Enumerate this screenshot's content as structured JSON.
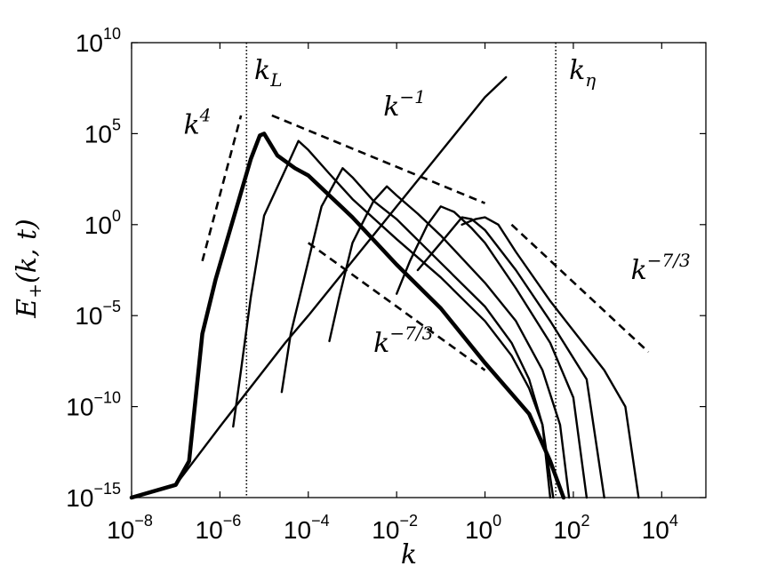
{
  "chart_data": {
    "type": "line",
    "xscale": "log",
    "yscale": "log",
    "xlim": [
      1e-08,
      100000.0
    ],
    "ylim": [
      1e-15,
      10000000000.0
    ],
    "xlabel": "k",
    "ylabel": "E+(k,t)",
    "grid": false,
    "x_ticks": [
      {
        "base": "10",
        "exp": "−8",
        "value": 1e-08
      },
      {
        "base": "10",
        "exp": "−6",
        "value": 1e-06
      },
      {
        "base": "10",
        "exp": "−4",
        "value": 0.0001
      },
      {
        "base": "10",
        "exp": "−2",
        "value": 0.01
      },
      {
        "base": "10",
        "exp": "0",
        "value": 1
      },
      {
        "base": "10",
        "exp": "2",
        "value": 100.0
      },
      {
        "base": "10",
        "exp": "4",
        "value": 10000.0
      }
    ],
    "y_ticks": [
      {
        "base": "10",
        "exp": "−15",
        "value": 1e-15
      },
      {
        "base": "10",
        "exp": "−10",
        "value": 1e-10
      },
      {
        "base": "10",
        "exp": "−5",
        "value": 1e-05
      },
      {
        "base": "10",
        "exp": "0",
        "value": 1
      },
      {
        "base": "10",
        "exp": "5",
        "value": 100000.0
      },
      {
        "base": "10",
        "exp": "10",
        "value": 10000000000.0
      }
    ],
    "vlines": [
      {
        "label": "k_L",
        "x": 4e-06
      },
      {
        "label": "k_η",
        "x": 40
      }
    ],
    "reference_slopes": [
      {
        "label": "k^4",
        "points": [
          [
            4e-07,
            0.01
          ],
          [
            3e-06,
            1000000.0
          ]
        ]
      },
      {
        "label": "k^-1",
        "points": [
          [
            1.5e-05,
            1000000.0
          ],
          [
            1,
            15.0
          ]
        ]
      },
      {
        "label": "k^-7/3",
        "points": [
          [
            0.0001,
            0.1
          ],
          [
            1,
            -8
          ]
        ]
      },
      {
        "label": "k^-7/3",
        "points": [
          [
            4,
            1.0
          ],
          [
            5000.0,
            -7
          ]
        ]
      }
    ],
    "annotations": [
      {
        "text": "k^4",
        "x": 1.5e-07,
        "y": 100000.0
      },
      {
        "text": "k^−1",
        "x": 0.005,
        "y": 1000000.0
      },
      {
        "text": "k^−7/3",
        "x": 0.003,
        "y": 1e-07
      },
      {
        "text": "k^−7/3",
        "x": 2000.0,
        "y": 0.001
      },
      {
        "text": "k_L",
        "x": 6e-06,
        "y": 100000000.0
      },
      {
        "text": "k_η",
        "x": 80,
        "y": 100000000.0
      }
    ],
    "series": [
      {
        "bold": false,
        "points": [
          [
            1e-08,
            -15
          ],
          [
            1e-07,
            -14.3
          ],
          [
            1e-06,
            -11.1
          ],
          [
            3e-05,
            -6.5
          ],
          [
            0.0001,
            -5
          ],
          [
            0.001,
            -2
          ],
          [
            0.01,
            1
          ],
          [
            0.1,
            4
          ],
          [
            1.0,
            7
          ],
          [
            3.0,
            8.1
          ]
        ],
        "log_y": true,
        "note": "envelope"
      },
      {
        "bold": false,
        "points": [
          [
            2e-06,
            -11.1
          ],
          [
            3e-06,
            -8
          ],
          [
            5e-06,
            -4
          ],
          [
            1e-05,
            0.5
          ],
          [
            3e-05,
            3
          ],
          [
            6e-05,
            4.6
          ],
          [
            0.0001,
            4.1
          ],
          [
            0.0003,
            2.8
          ],
          [
            0.001,
            1.4
          ],
          [
            0.01,
            -0.8
          ],
          [
            0.1,
            -2.9
          ],
          [
            1,
            -5.3
          ],
          [
            4,
            -7.2
          ],
          [
            10,
            -9
          ],
          [
            20,
            -11
          ],
          [
            30,
            -15
          ]
        ],
        "log_y": true
      },
      {
        "bold": false,
        "points": [
          [
            2.5e-05,
            -9.2
          ],
          [
            4e-05,
            -6
          ],
          [
            0.0001,
            -2
          ],
          [
            0.0002,
            1
          ],
          [
            0.0006,
            3.1
          ],
          [
            0.001,
            2.6
          ],
          [
            0.003,
            1.3
          ],
          [
            0.01,
            0.3
          ],
          [
            0.1,
            -2.1
          ],
          [
            1,
            -4.5
          ],
          [
            4,
            -6.5
          ],
          [
            10,
            -8.5
          ],
          [
            20,
            -11
          ],
          [
            35,
            -15
          ]
        ],
        "log_y": true
      },
      {
        "bold": false,
        "points": [
          [
            0.0003,
            -6.4
          ],
          [
            0.0005,
            -4
          ],
          [
            0.001,
            -1
          ],
          [
            0.003,
            1.3
          ],
          [
            0.006,
            2.1
          ],
          [
            0.01,
            1.6
          ],
          [
            0.03,
            0.6
          ],
          [
            0.1,
            -0.6
          ],
          [
            1,
            -3.2
          ],
          [
            5,
            -5.3
          ],
          [
            20,
            -8
          ],
          [
            50,
            -11
          ],
          [
            80,
            -15
          ]
        ],
        "log_y": true
      },
      {
        "bold": false,
        "points": [
          [
            0.01,
            -3.8
          ],
          [
            0.02,
            -2
          ],
          [
            0.05,
            0
          ],
          [
            0.1,
            1.0
          ],
          [
            0.2,
            0.7
          ],
          [
            0.5,
            -0.2
          ],
          [
            1,
            -1
          ],
          [
            5,
            -3.5
          ],
          [
            30,
            -6.5
          ],
          [
            100,
            -9.5
          ],
          [
            200,
            -15
          ]
        ],
        "log_y": true
      },
      {
        "bold": false,
        "points": [
          [
            0.03,
            -2.5
          ],
          [
            0.1,
            -1
          ],
          [
            0.3,
            0.4
          ],
          [
            0.5,
            0.3
          ],
          [
            1,
            -0.3
          ],
          [
            5,
            -2.5
          ],
          [
            30,
            -5.3
          ],
          [
            200,
            -8.5
          ],
          [
            500,
            -15
          ]
        ],
        "log_y": true
      },
      {
        "bold": false,
        "points": [
          [
            0.3,
            0.0
          ],
          [
            0.6,
            0.3
          ],
          [
            1,
            0.4
          ],
          [
            2,
            0.0
          ],
          [
            5,
            -1.5
          ],
          [
            30,
            -4.2
          ],
          [
            500,
            -8
          ],
          [
            1500,
            -10
          ],
          [
            3000,
            -15
          ]
        ],
        "log_y": true
      },
      {
        "bold": true,
        "points": [
          [
            1e-08,
            -15
          ],
          [
            1e-07,
            -14.3
          ],
          [
            2e-07,
            -13
          ],
          [
            4e-07,
            -6
          ],
          [
            8e-07,
            -3
          ],
          [
            2e-06,
            0.3
          ],
          [
            5e-06,
            3.6
          ],
          [
            8e-06,
            4.9
          ],
          [
            1e-05,
            5.0
          ],
          [
            2e-05,
            3.8
          ],
          [
            5e-05,
            3.1
          ],
          [
            0.0001,
            2.7
          ],
          [
            0.001,
            0.4
          ],
          [
            0.01,
            -2.2
          ],
          [
            0.1,
            -4.6
          ],
          [
            1,
            -7.6
          ],
          [
            10,
            -10.4
          ],
          [
            30,
            -13
          ],
          [
            60,
            -15
          ]
        ],
        "log_y": true
      }
    ]
  }
}
